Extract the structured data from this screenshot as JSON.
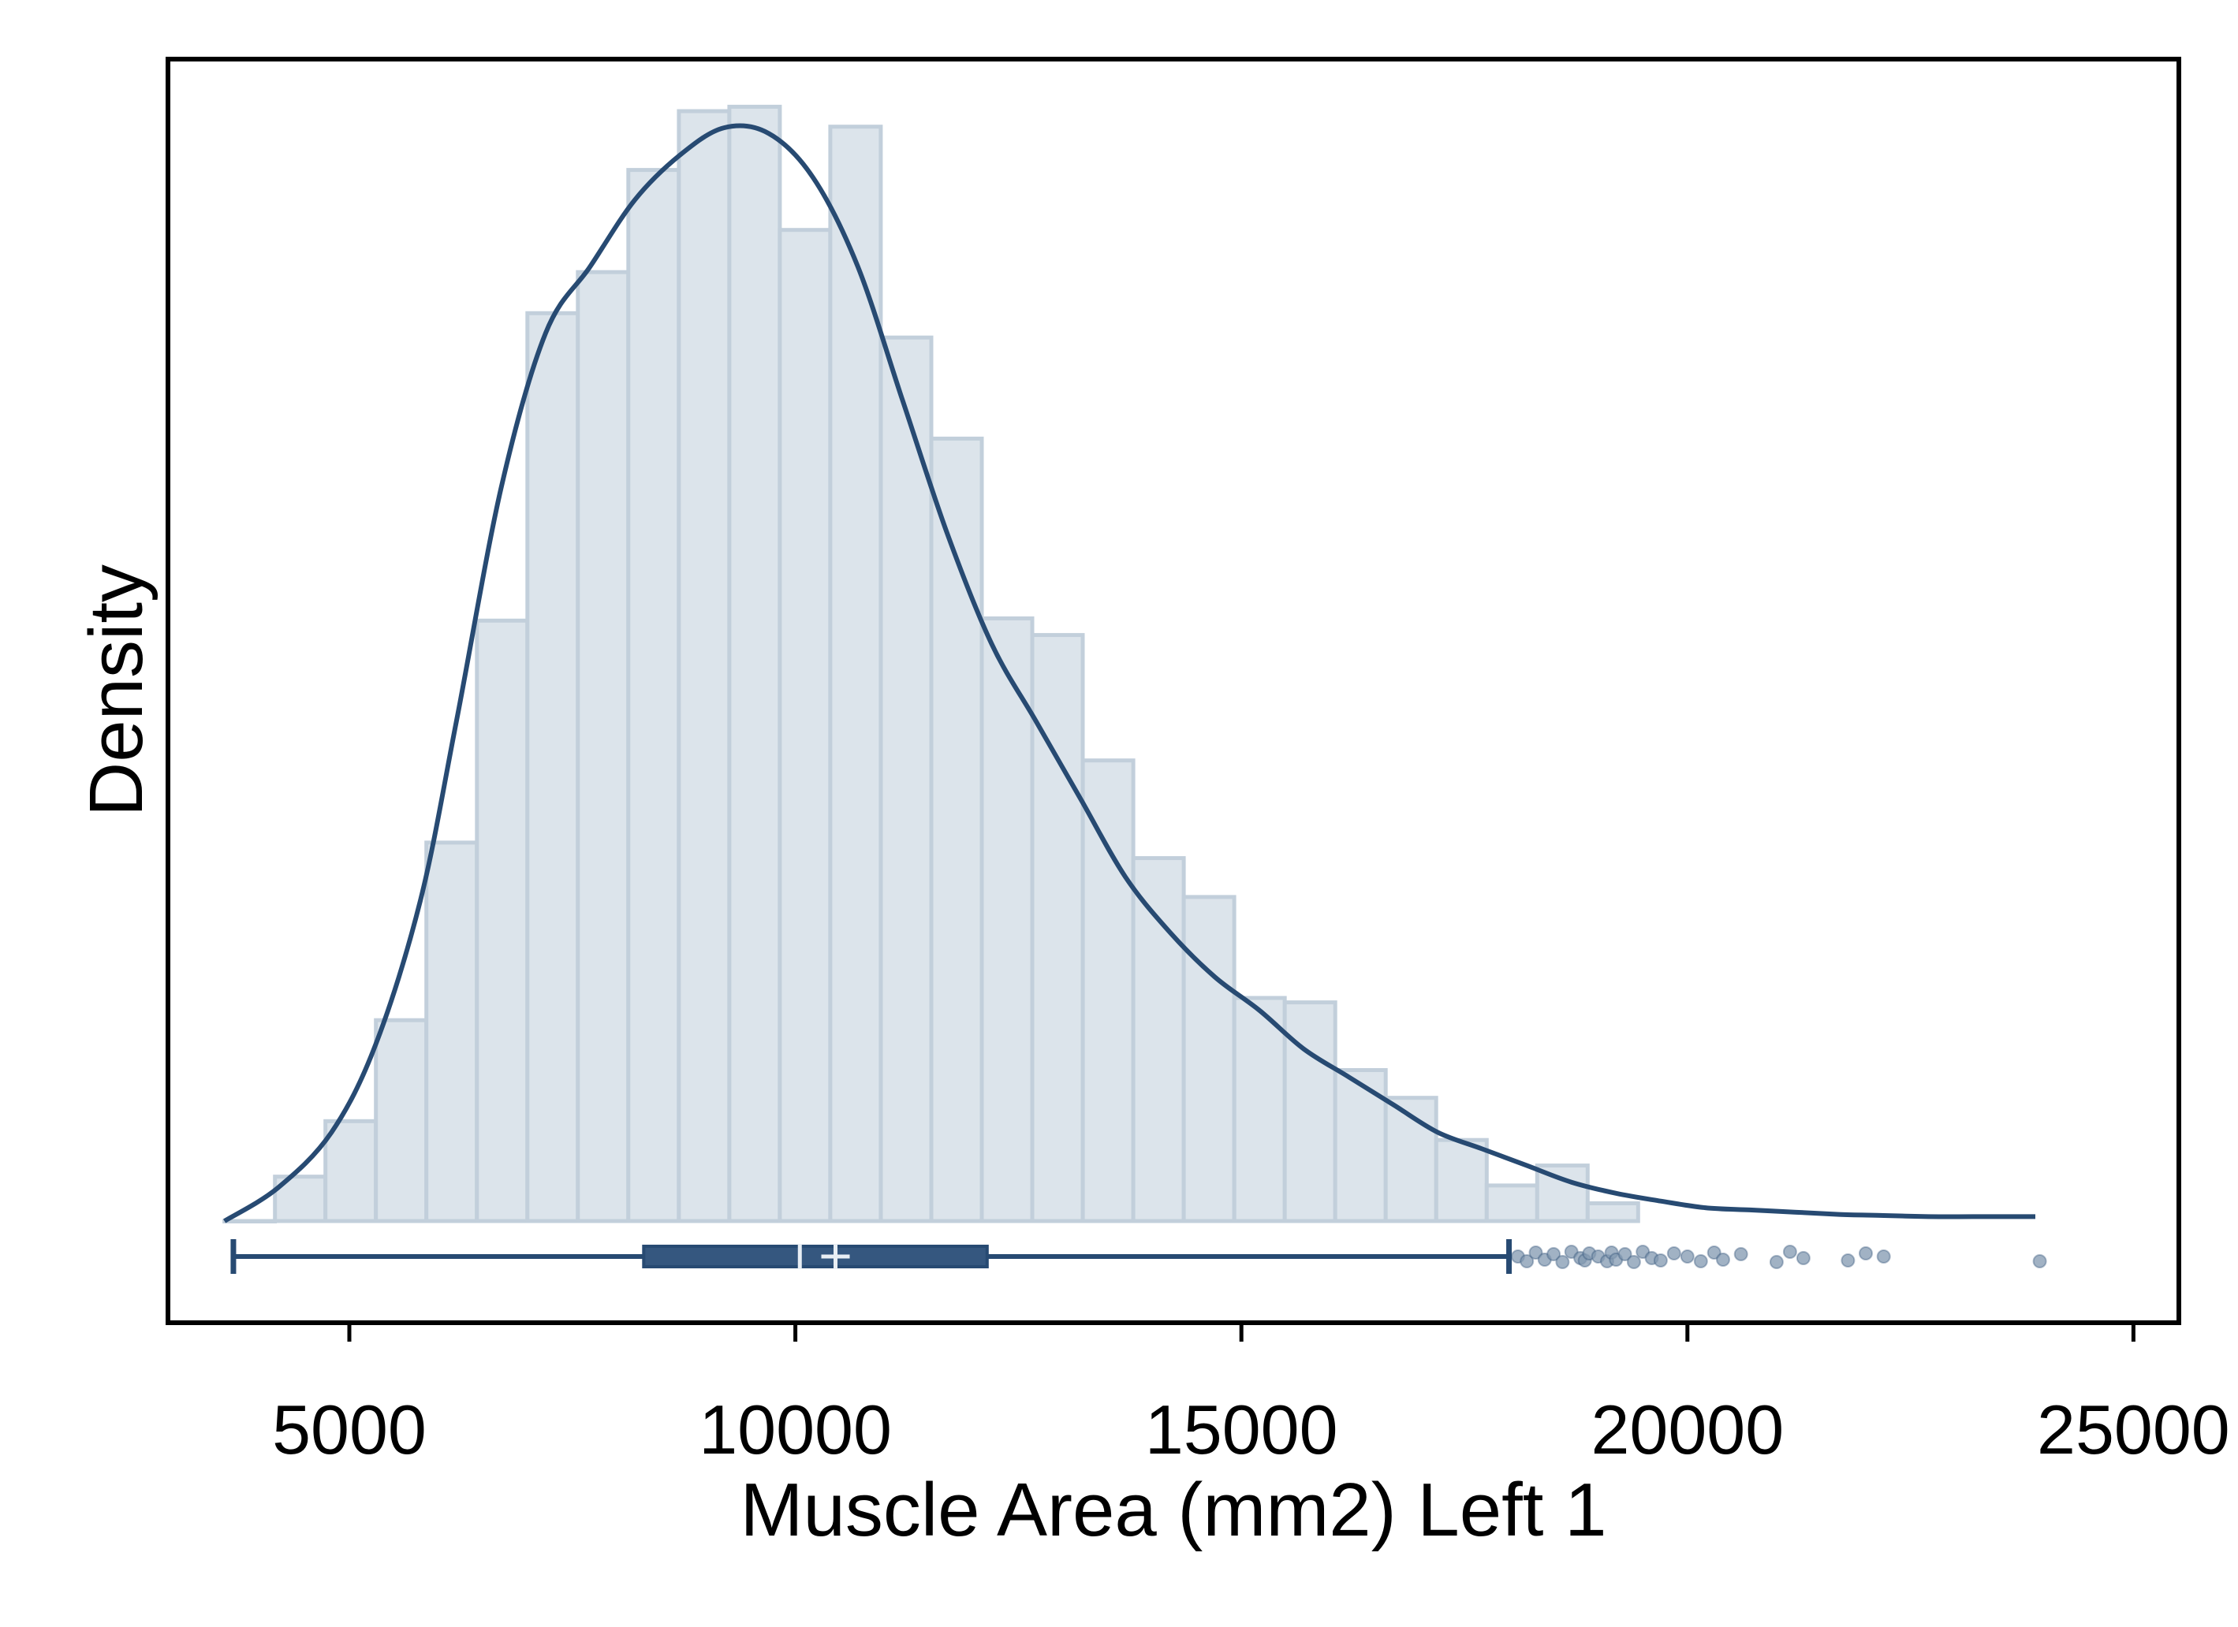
{
  "chart_data": {
    "type": "histogram",
    "xlabel": "Muscle Area (mm2) Left 1",
    "ylabel": "Density",
    "xlim": [
      3000,
      26000
    ],
    "x_ticks": [
      5000,
      10000,
      15000,
      20000,
      25000
    ],
    "x_tick_labels": [
      "5000",
      "10000",
      "15000",
      "20000",
      "25000"
    ],
    "y_ticks_shown": false,
    "grid": false,
    "legend": "none",
    "colors": {
      "bar_fill": "#dce4eb",
      "bar_edge": "#c2cfdb",
      "line": "#274a72",
      "box_fill": "#35577f",
      "outlier": "#8298b0"
    },
    "histogram": {
      "bin_start": 3600,
      "bin_width": 566,
      "relative_heights": [
        0.0,
        0.04,
        0.09,
        0.181,
        0.341,
        0.541,
        0.818,
        0.855,
        0.947,
        1.0,
        1.004,
        0.893,
        0.986,
        0.796,
        0.705,
        0.543,
        0.528,
        0.415,
        0.327,
        0.292,
        0.201,
        0.197,
        0.136,
        0.111,
        0.073,
        0.032,
        0.05,
        0.016
      ]
    },
    "density_curve": {
      "x": [
        3600,
        4200,
        4800,
        5300,
        5800,
        6200,
        6700,
        7200,
        7700,
        8200,
        8700,
        9200,
        9700,
        10200,
        10700,
        11200,
        11700,
        12200,
        12700,
        13200,
        13700,
        14200,
        14700,
        15200,
        15700,
        16200,
        16700,
        17200,
        17700,
        18200,
        18700,
        19200,
        19700,
        20200,
        20700,
        21200,
        21700,
        22200,
        22700,
        23200,
        23700,
        23900
      ],
      "y": [
        0.0,
        0.03,
        0.08,
        0.16,
        0.29,
        0.45,
        0.66,
        0.8,
        0.86,
        0.92,
        0.96,
        0.985,
        0.98,
        0.94,
        0.86,
        0.74,
        0.62,
        0.52,
        0.45,
        0.38,
        0.31,
        0.26,
        0.22,
        0.19,
        0.155,
        0.13,
        0.105,
        0.08,
        0.065,
        0.05,
        0.035,
        0.025,
        0.018,
        0.012,
        0.01,
        0.008,
        0.006,
        0.005,
        0.004,
        0.004,
        0.004,
        0.004
      ]
    },
    "boxplot": {
      "whisker_low": 3700,
      "q1": 8300,
      "median": 10050,
      "mean": 10450,
      "q3": 12150,
      "whisker_high": 18000,
      "outliers": [
        18100,
        18200,
        18300,
        18400,
        18500,
        18600,
        18700,
        18800,
        18850,
        18900,
        19000,
        19100,
        19150,
        19200,
        19300,
        19400,
        19500,
        19600,
        19700,
        19850,
        20000,
        20150,
        20300,
        20400,
        20600,
        21000,
        21150,
        21300,
        21800,
        22000,
        22200,
        23950
      ]
    }
  }
}
